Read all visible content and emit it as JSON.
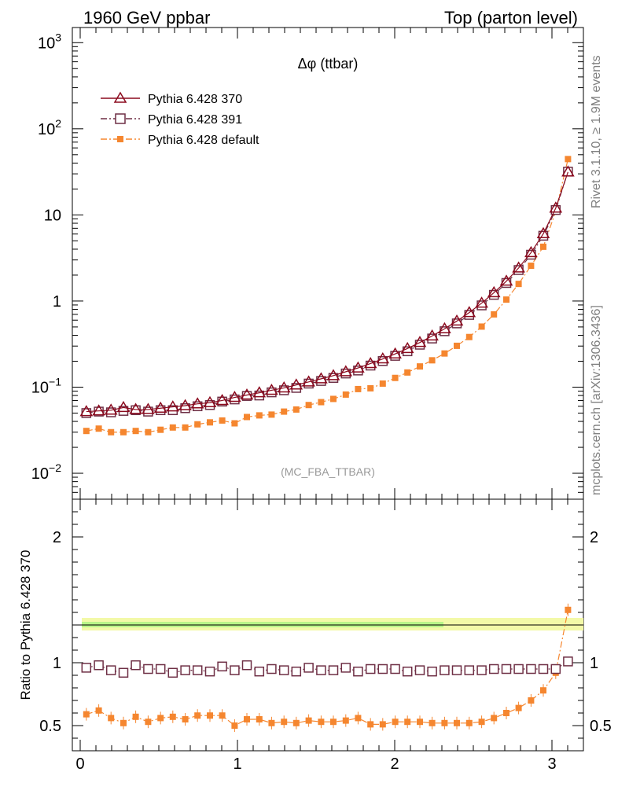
{
  "header": {
    "left": "1960 GeV ppbar",
    "right": "Top (parton level)"
  },
  "side_labels": {
    "rivet": "Rivet 3.1.10, ≥ 1.9M events",
    "mcplots": "mcplots.cern.ch [arXiv:1306.3436]"
  },
  "chart_data": {
    "type": "line",
    "title": "Δφ (ttbar)",
    "analysis_tag": "(MC_FBA_TTBAR)",
    "xlabel": "",
    "ylabel": "",
    "ratio_ylabel": "Ratio to Pythia 6.428 370",
    "xlim": [
      -0.05,
      3.2
    ],
    "ylim_log": [
      0.005,
      1500
    ],
    "ratio_ylim": [
      0.3,
      2.3
    ],
    "x_ticks": [
      "0",
      "1",
      "2",
      "3"
    ],
    "y_ticks": [
      "10^-2",
      "10^-1",
      "1",
      "10",
      "10^2",
      "10^3"
    ],
    "ratio_y_ticks": [
      "0.5",
      "1",
      "2"
    ],
    "x": [
      0.039,
      0.118,
      0.196,
      0.275,
      0.353,
      0.432,
      0.511,
      0.589,
      0.668,
      0.746,
      0.825,
      0.903,
      0.982,
      1.06,
      1.139,
      1.217,
      1.296,
      1.374,
      1.453,
      1.532,
      1.61,
      1.689,
      1.767,
      1.846,
      1.924,
      2.003,
      2.081,
      2.16,
      2.238,
      2.317,
      2.395,
      2.474,
      2.553,
      2.631,
      2.71,
      2.788,
      2.867,
      2.945,
      3.024,
      3.102
    ],
    "legend": {
      "position": "top-left"
    },
    "series": [
      {
        "name": "Pythia 6.428 370",
        "color": "#8b0a1e",
        "marker": "triangle-open",
        "line": "solid",
        "values": [
          0.052,
          0.053,
          0.054,
          0.058,
          0.055,
          0.055,
          0.057,
          0.059,
          0.061,
          0.064,
          0.066,
          0.07,
          0.076,
          0.081,
          0.086,
          0.092,
          0.098,
          0.106,
          0.115,
          0.125,
          0.136,
          0.151,
          0.167,
          0.188,
          0.213,
          0.243,
          0.281,
          0.33,
          0.393,
          0.476,
          0.585,
          0.735,
          0.946,
          1.25,
          1.7,
          2.42,
          3.65,
          6.05,
          12.0,
          31.5
        ]
      },
      {
        "name": "Pythia 6.428 391",
        "color": "#6e2f45",
        "marker": "square-open",
        "line": "dash-dot",
        "values": [
          0.05,
          0.052,
          0.051,
          0.053,
          0.054,
          0.052,
          0.054,
          0.054,
          0.057,
          0.06,
          0.062,
          0.068,
          0.072,
          0.079,
          0.08,
          0.087,
          0.092,
          0.098,
          0.11,
          0.118,
          0.128,
          0.144,
          0.156,
          0.178,
          0.201,
          0.231,
          0.261,
          0.311,
          0.367,
          0.446,
          0.55,
          0.69,
          0.89,
          1.18,
          1.62,
          2.29,
          3.45,
          5.73,
          11.4,
          31.8
        ]
      },
      {
        "name": "Pythia 6.428 default",
        "color": "#f5862f",
        "marker": "square-filled",
        "line": "dash-dot",
        "values": [
          0.031,
          0.033,
          0.03,
          0.03,
          0.031,
          0.03,
          0.032,
          0.034,
          0.034,
          0.037,
          0.039,
          0.041,
          0.038,
          0.045,
          0.047,
          0.048,
          0.052,
          0.055,
          0.062,
          0.067,
          0.073,
          0.082,
          0.095,
          0.097,
          0.11,
          0.128,
          0.148,
          0.174,
          0.205,
          0.246,
          0.302,
          0.382,
          0.505,
          0.7,
          1.04,
          1.58,
          2.57,
          4.27,
          11.0,
          44.5
        ]
      }
    ],
    "ratio_series": [
      {
        "name": "Pythia 6.428 391",
        "values": [
          0.96,
          0.98,
          0.94,
          0.92,
          0.98,
          0.95,
          0.95,
          0.92,
          0.94,
          0.94,
          0.93,
          0.97,
          0.94,
          0.98,
          0.93,
          0.95,
          0.94,
          0.93,
          0.96,
          0.94,
          0.94,
          0.96,
          0.93,
          0.95,
          0.95,
          0.95,
          0.93,
          0.94,
          0.93,
          0.94,
          0.94,
          0.94,
          0.94,
          0.95,
          0.95,
          0.95,
          0.95,
          0.95,
          0.95,
          1.01
        ]
      },
      {
        "name": "Pythia 6.428 default",
        "values": [
          0.59,
          0.62,
          0.56,
          0.52,
          0.57,
          0.53,
          0.56,
          0.57,
          0.55,
          0.58,
          0.58,
          0.58,
          0.5,
          0.55,
          0.55,
          0.52,
          0.53,
          0.52,
          0.54,
          0.53,
          0.53,
          0.54,
          0.56,
          0.51,
          0.51,
          0.53,
          0.53,
          0.53,
          0.52,
          0.52,
          0.52,
          0.52,
          0.53,
          0.56,
          0.6,
          0.64,
          0.7,
          0.78,
          0.92,
          1.42
        ]
      }
    ]
  }
}
